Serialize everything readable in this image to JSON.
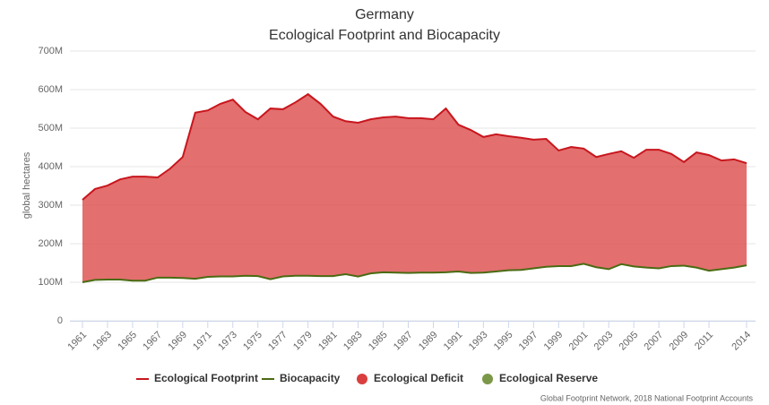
{
  "chart_data": {
    "type": "area",
    "title": "Germany",
    "subtitle": "Ecological Footprint and Biocapacity",
    "y_axis_label": "global hectares",
    "credits": "Global Footprint Network, 2018 National Footprint Accounts",
    "x": [
      1961,
      1962,
      1963,
      1964,
      1965,
      1966,
      1967,
      1968,
      1969,
      1970,
      1971,
      1972,
      1973,
      1974,
      1975,
      1976,
      1977,
      1978,
      1979,
      1980,
      1981,
      1982,
      1983,
      1984,
      1985,
      1986,
      1987,
      1988,
      1989,
      1990,
      1991,
      1992,
      1993,
      1994,
      1995,
      1996,
      1997,
      1998,
      1999,
      2000,
      2001,
      2002,
      2003,
      2004,
      2005,
      2006,
      2007,
      2008,
      2009,
      2010,
      2011,
      2012,
      2013,
      2014
    ],
    "xlim": [
      1961,
      2014
    ],
    "xticks": [
      1961,
      1963,
      1965,
      1967,
      1969,
      1971,
      1973,
      1975,
      1977,
      1979,
      1981,
      1983,
      1985,
      1987,
      1989,
      1991,
      1993,
      1995,
      1997,
      1999,
      2001,
      2003,
      2005,
      2007,
      2009,
      2011,
      2014
    ],
    "ylim": [
      0,
      700
    ],
    "yticks": [
      0,
      {
        "value": 100,
        "label": "100M"
      },
      {
        "value": 200,
        "label": "200M"
      },
      {
        "value": 300,
        "label": "300M"
      },
      {
        "value": 400,
        "label": "400M"
      },
      {
        "value": 500,
        "label": "500M"
      },
      {
        "value": 600,
        "label": "600M"
      },
      {
        "value": 700,
        "label": "700M"
      }
    ],
    "grid": true,
    "series": [
      {
        "name": "Ecological Footprint",
        "color": "#c8161d",
        "values": [
          314,
          342,
          351,
          367,
          374,
          374,
          372,
          395,
          425,
          540,
          546,
          563,
          574,
          542,
          523,
          551,
          549,
          567,
          588,
          563,
          530,
          518,
          514,
          523,
          528,
          530,
          526,
          526,
          523,
          551,
          509,
          495,
          477,
          484,
          479,
          475,
          470,
          472,
          442,
          451,
          447,
          425,
          433,
          440,
          423,
          444,
          444,
          433,
          412,
          437,
          430,
          416,
          419,
          409
        ]
      },
      {
        "name": "Biocapacity",
        "color": "#4a6b12",
        "values": [
          100,
          106,
          107,
          107,
          104,
          104,
          112,
          112,
          111,
          109,
          114,
          115,
          115,
          117,
          116,
          108,
          115,
          117,
          117,
          116,
          116,
          121,
          115,
          123,
          126,
          125,
          124,
          125,
          125,
          126,
          128,
          124,
          125,
          128,
          131,
          132,
          136,
          140,
          142,
          142,
          148,
          139,
          134,
          147,
          141,
          138,
          136,
          142,
          143,
          138,
          130,
          134,
          138,
          144
        ]
      }
    ],
    "areas": [
      {
        "name": "Ecological Deficit",
        "color": "#d93f3f"
      },
      {
        "name": "Ecological Reserve",
        "color": "#7b9848"
      }
    ]
  }
}
